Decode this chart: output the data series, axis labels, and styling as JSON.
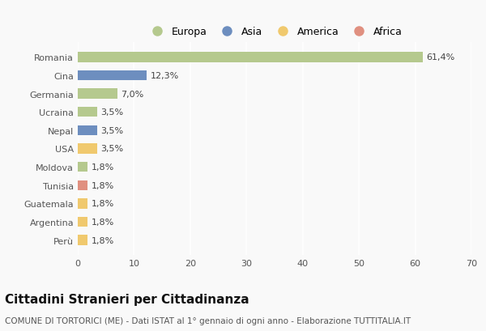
{
  "categories": [
    "Romania",
    "Cina",
    "Germania",
    "Ucraina",
    "Nepal",
    "USA",
    "Moldova",
    "Tunisia",
    "Guatemala",
    "Argentina",
    "Perù"
  ],
  "values": [
    61.4,
    12.3,
    7.0,
    3.5,
    3.5,
    3.5,
    1.8,
    1.8,
    1.8,
    1.8,
    1.8
  ],
  "labels": [
    "61,4%",
    "12,3%",
    "7,0%",
    "3,5%",
    "3,5%",
    "3,5%",
    "1,8%",
    "1,8%",
    "1,8%",
    "1,8%",
    "1,8%"
  ],
  "continents": [
    "Europa",
    "Asia",
    "Europa",
    "Europa",
    "Asia",
    "America",
    "Europa",
    "Africa",
    "America",
    "America",
    "America"
  ],
  "colors": {
    "Europa": "#b5c98e",
    "Asia": "#6d8ebf",
    "America": "#f0c96e",
    "Africa": "#e09080"
  },
  "legend_order": [
    "Europa",
    "Asia",
    "America",
    "Africa"
  ],
  "xlim": [
    0,
    70
  ],
  "xticks": [
    0,
    10,
    20,
    30,
    40,
    50,
    60,
    70
  ],
  "title": "Cittadini Stranieri per Cittadinanza",
  "subtitle": "COMUNE DI TORTORICI (ME) - Dati ISTAT al 1° gennaio di ogni anno - Elaborazione TUTTITALIA.IT",
  "background_color": "#f9f9f9",
  "plot_bg_color": "#f9f9f9",
  "bar_height": 0.55,
  "title_fontsize": 11,
  "subtitle_fontsize": 7.5,
  "label_fontsize": 8,
  "tick_fontsize": 8,
  "legend_fontsize": 9
}
